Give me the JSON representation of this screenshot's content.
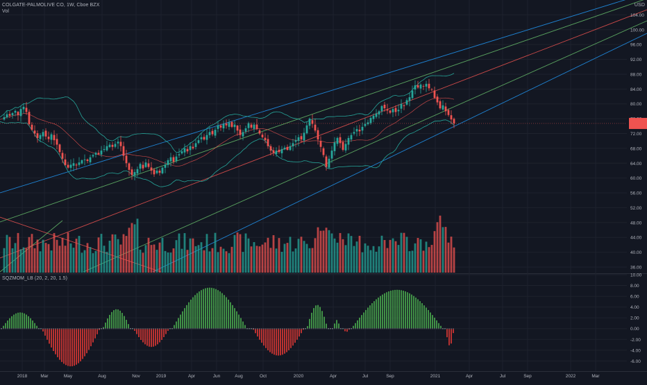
{
  "header": {
    "symbol_title": "COLGATE-PALMOLIVE CO, 1W, Cboe BZX",
    "volume_label": "Vol",
    "currency": "USD"
  },
  "oscillator": {
    "title": "SQZMOM_LB (20, 2, 20, 1.5)"
  },
  "colors": {
    "background": "#131722",
    "grid": "#1e222d",
    "up": "#26a69a",
    "down": "#ef5350",
    "vol_up": "#26a69a",
    "vol_down": "#ef5350",
    "band": "#26a69a",
    "basis": "#ef5350",
    "fan_blue": "#2196f3",
    "fan_green": "#66bb6a",
    "fan_red": "#ef5350",
    "price_tag": "#ef5350",
    "mom_green": "#4caf50",
    "mom_red": "#e53935"
  },
  "chart_data": [
    {
      "type": "candlestick",
      "interval": "1W",
      "price_axis": {
        "ticks": [
          "104.00",
          "100.00",
          "96.00",
          "92.00",
          "88.00",
          "84.00",
          "80.00",
          "76.00",
          "72.00",
          "68.00",
          "64.00",
          "60.00",
          "56.00",
          "52.00",
          "48.00",
          "44.00",
          "40.00",
          "36.00"
        ],
        "range": [
          34.5,
          108
        ]
      },
      "time_axis": {
        "ticks": [
          "2018",
          "Mar",
          "May",
          "Aug",
          "Nov",
          "2019",
          "Apr",
          "Jun",
          "Aug",
          "Oct",
          "2020",
          "Apr",
          "Jul",
          "Sep",
          "2021",
          "Apr",
          "Jul",
          "Sep",
          "2022",
          "Mar"
        ]
      },
      "last_price": "74.72",
      "indicators": [
        "Bollinger Bands (20, 2)",
        "Volume",
        "Gann / Pitchfork fan lines"
      ],
      "close_path": [
        [
          0,
          75.8
        ],
        [
          6,
          76.4
        ],
        [
          10,
          77.2
        ],
        [
          14,
          76.8
        ],
        [
          18,
          77.5
        ],
        [
          22,
          78.1
        ],
        [
          26,
          77.0
        ],
        [
          30,
          78.6
        ],
        [
          34,
          79.2
        ],
        [
          38,
          77.8
        ],
        [
          42,
          74.5
        ],
        [
          46,
          73.0
        ],
        [
          50,
          72.0
        ],
        [
          54,
          70.8
        ],
        [
          58,
          71.6
        ],
        [
          62,
          72.4
        ],
        [
          66,
          71.2
        ],
        [
          70,
          70.5
        ],
        [
          74,
          71.8
        ],
        [
          78,
          70.2
        ],
        [
          82,
          69.0
        ],
        [
          86,
          67.0
        ],
        [
          90,
          65.2
        ],
        [
          94,
          63.5
        ],
        [
          98,
          62.8
        ],
        [
          102,
          63.6
        ],
        [
          106,
          64.0
        ],
        [
          110,
          63.4
        ],
        [
          114,
          64.2
        ],
        [
          118,
          64.8
        ],
        [
          122,
          65.0
        ],
        [
          126,
          64.6
        ],
        [
          130,
          65.6
        ],
        [
          134,
          66.2
        ],
        [
          138,
          66.8
        ],
        [
          142,
          66.4
        ],
        [
          146,
          67.4
        ],
        [
          150,
          67.8
        ],
        [
          154,
          68.6
        ],
        [
          158,
          69.0
        ],
        [
          162,
          68.4
        ],
        [
          166,
          69.2
        ],
        [
          170,
          69.8
        ],
        [
          174,
          68.6
        ],
        [
          178,
          66.0
        ],
        [
          182,
          64.0
        ],
        [
          186,
          62.2
        ],
        [
          190,
          60.8
        ],
        [
          194,
          61.6
        ],
        [
          198,
          62.4
        ],
        [
          202,
          63.8
        ],
        [
          206,
          62.6
        ],
        [
          210,
          64.2
        ],
        [
          214,
          63.0
        ],
        [
          218,
          62.0
        ],
        [
          222,
          61.0
        ],
        [
          226,
          62.0
        ],
        [
          230,
          61.4
        ],
        [
          234,
          62.8
        ],
        [
          238,
          63.6
        ],
        [
          242,
          64.8
        ],
        [
          246,
          65.6
        ],
        [
          250,
          64.4
        ],
        [
          254,
          65.8
        ],
        [
          258,
          66.4
        ],
        [
          262,
          67.2
        ],
        [
          266,
          68.0
        ],
        [
          270,
          67.2
        ],
        [
          274,
          68.6
        ],
        [
          278,
          68.0
        ],
        [
          282,
          69.4
        ],
        [
          286,
          70.2
        ],
        [
          290,
          71.0
        ],
        [
          294,
          70.4
        ],
        [
          298,
          71.6
        ],
        [
          302,
          72.4
        ],
        [
          306,
          71.8
        ],
        [
          310,
          73.0
        ],
        [
          314,
          74.2
        ],
        [
          318,
          73.6
        ],
        [
          322,
          74.6
        ],
        [
          326,
          74.2
        ],
        [
          330,
          75.0
        ],
        [
          334,
          73.8
        ],
        [
          338,
          74.4
        ],
        [
          342,
          72.8
        ],
        [
          346,
          71.6
        ],
        [
          350,
          72.4
        ],
        [
          354,
          73.4
        ],
        [
          358,
          74.8
        ],
        [
          362,
          73.6
        ],
        [
          366,
          74.4
        ],
        [
          370,
          73.2
        ],
        [
          374,
          72.0
        ],
        [
          378,
          71.0
        ],
        [
          382,
          70.2
        ],
        [
          386,
          68.6
        ],
        [
          390,
          67.4
        ],
        [
          394,
          66.8
        ],
        [
          398,
          67.4
        ],
        [
          402,
          67.0
        ],
        [
          406,
          67.8
        ],
        [
          410,
          68.2
        ],
        [
          414,
          67.6
        ],
        [
          418,
          68.6
        ],
        [
          422,
          69.4
        ],
        [
          426,
          70.2
        ],
        [
          430,
          71.0
        ],
        [
          434,
          70.4
        ],
        [
          438,
          72.2
        ],
        [
          442,
          74.2
        ],
        [
          446,
          76.0
        ],
        [
          450,
          74.6
        ],
        [
          454,
          72.8
        ],
        [
          458,
          70.4
        ],
        [
          462,
          68.4
        ],
        [
          466,
          66.2
        ],
        [
          470,
          63.0
        ],
        [
          474,
          65.2
        ],
        [
          478,
          67.4
        ],
        [
          482,
          69.6
        ],
        [
          486,
          70.8
        ],
        [
          490,
          69.4
        ],
        [
          494,
          67.6
        ],
        [
          498,
          69.2
        ],
        [
          502,
          70.8
        ],
        [
          506,
          71.6
        ],
        [
          510,
          72.4
        ],
        [
          514,
          73.2
        ],
        [
          518,
          72.6
        ],
        [
          522,
          73.8
        ],
        [
          526,
          74.6
        ],
        [
          530,
          75.0
        ],
        [
          534,
          76.2
        ],
        [
          538,
          76.8
        ],
        [
          542,
          77.4
        ],
        [
          546,
          78.0
        ],
        [
          550,
          79.4
        ],
        [
          554,
          78.8
        ],
        [
          558,
          78.2
        ],
        [
          562,
          77.6
        ],
        [
          566,
          78.6
        ],
        [
          570,
          77.8
        ],
        [
          574,
          78.4
        ],
        [
          578,
          80.0
        ],
        [
          582,
          79.4
        ],
        [
          586,
          81.0
        ],
        [
          590,
          81.8
        ],
        [
          594,
          83.6
        ],
        [
          598,
          85.0
        ],
        [
          602,
          84.4
        ],
        [
          606,
          85.2
        ],
        [
          610,
          84.8
        ],
        [
          614,
          85.4
        ],
        [
          618,
          84.2
        ],
        [
          622,
          83.8
        ],
        [
          626,
          81.6
        ],
        [
          630,
          80.4
        ],
        [
          634,
          78.8
        ],
        [
          638,
          79.6
        ],
        [
          642,
          78.0
        ],
        [
          646,
          77.0
        ],
        [
          650,
          75.8
        ],
        [
          654,
          74.7
        ]
      ]
    },
    {
      "type": "histogram",
      "name": "SQZMOM_LB (20, 2, 20, 1.5)",
      "axis": {
        "ticks": [
          "10.00",
          "8.00",
          "6.00",
          "4.00",
          "2.00",
          "0.00",
          "-2.00",
          "-4.00",
          "-6.00"
        ],
        "range": [
          -7.5,
          10
        ]
      },
      "segments": [
        {
          "start": 2,
          "end": 56,
          "peak": 3.0,
          "sign": 1
        },
        {
          "start": 60,
          "end": 144,
          "peak": -7.0,
          "sign": -1
        },
        {
          "start": 148,
          "end": 188,
          "peak": 3.6,
          "sign": 1
        },
        {
          "start": 192,
          "end": 244,
          "peak": -3.4,
          "sign": -1
        },
        {
          "start": 248,
          "end": 356,
          "peak": 7.6,
          "sign": 1
        },
        {
          "start": 364,
          "end": 438,
          "peak": -5.0,
          "sign": -1
        },
        {
          "start": 442,
          "end": 472,
          "peak": 4.4,
          "sign": 1
        },
        {
          "start": 480,
          "end": 490,
          "peak": 1.6,
          "sign": 1
        },
        {
          "start": 494,
          "end": 504,
          "peak": -0.6,
          "sign": -1
        },
        {
          "start": 506,
          "end": 638,
          "peak": 7.2,
          "sign": 1
        },
        {
          "start": 642,
          "end": 654,
          "peak": -3.2,
          "sign": -1
        }
      ]
    }
  ]
}
